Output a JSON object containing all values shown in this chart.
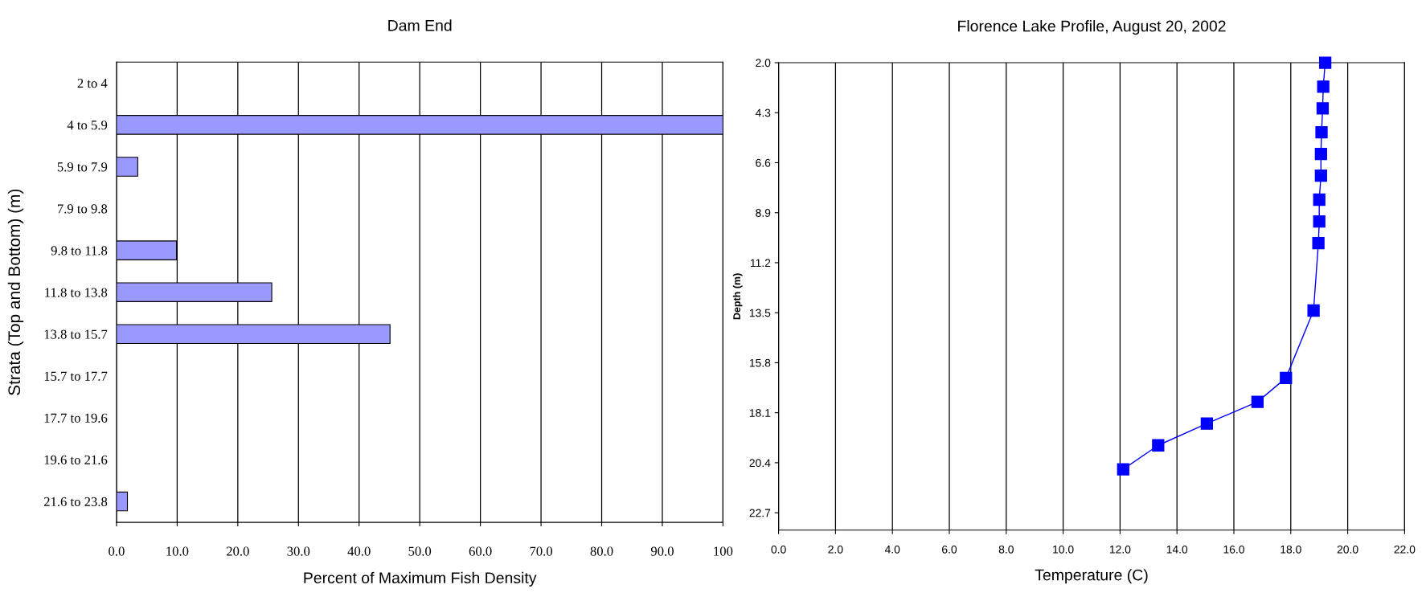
{
  "chart_data": [
    {
      "type": "bar",
      "orientation": "horizontal",
      "title": "Dam End",
      "xlabel": "Percent of Maximum Fish Density",
      "ylabel": "Strata (Top and Bottom) (m)",
      "categories": [
        "2 to 4",
        "4 to 5.9",
        "5.9 to 7.9",
        "7.9 to 9.8",
        "9.8 to 11.8",
        "11.8 to 13.8",
        "13.8 to 15.7",
        "15.7 to 17.7",
        "17.7 to 19.6",
        "19.6 to 21.6",
        "21.6 to 23.8"
      ],
      "values": [
        null,
        100,
        3.5,
        null,
        9.9,
        25.6,
        45.1,
        null,
        null,
        null,
        1.8
      ],
      "color": "#9999ff",
      "xlim": [
        0,
        100
      ],
      "xticks": [
        {
          "value": 0,
          "label": "0.0"
        },
        {
          "value": 10,
          "label": "10.0"
        },
        {
          "value": 20,
          "label": "20.0"
        },
        {
          "value": 30,
          "label": "30.0"
        },
        {
          "value": 40,
          "label": "40.0"
        },
        {
          "value": 50,
          "label": "50.0"
        },
        {
          "value": 60,
          "label": "60.0"
        },
        {
          "value": 70,
          "label": "70.0"
        },
        {
          "value": 80,
          "label": "80.0"
        },
        {
          "value": 90,
          "label": "90.0"
        },
        100
      ],
      "grid": "x",
      "legend": false
    },
    {
      "type": "line",
      "title": "Florence Lake Profile, August 20, 2002",
      "xlabel": "Temperature (C)",
      "ylabel": "Depth (m)",
      "x": [
        19.21,
        19.14,
        19.12,
        19.08,
        19.06,
        19.06,
        19.0,
        19.0,
        18.97,
        18.8,
        17.83,
        16.83,
        15.05,
        13.34,
        12.11
      ],
      "values": [
        2.0,
        3.1,
        4.1,
        5.2,
        6.2,
        7.2,
        8.3,
        9.3,
        10.3,
        13.4,
        16.5,
        17.6,
        18.6,
        19.6,
        20.7
      ],
      "color": "#0000ff",
      "marker": "square",
      "line_style": "solid",
      "xlim": [
        0,
        22
      ],
      "ylim": [
        23.5,
        2.0
      ],
      "xticks": [
        {
          "value": 0,
          "label": "0.0"
        },
        {
          "value": 2,
          "label": "2.0"
        },
        {
          "value": 4,
          "label": "4.0"
        },
        {
          "value": 6,
          "label": "6.0"
        },
        {
          "value": 8,
          "label": "8.0"
        },
        {
          "value": 10,
          "label": "10.0"
        },
        {
          "value": 12,
          "label": "12.0"
        },
        {
          "value": 14,
          "label": "14.0"
        },
        {
          "value": 16,
          "label": "16.0"
        },
        {
          "value": 18,
          "label": "18.0"
        },
        {
          "value": 20,
          "label": "20.0"
        },
        {
          "value": 22,
          "label": "22.0"
        }
      ],
      "yticks": [
        {
          "value": 2,
          "label": "2.0"
        },
        4.3,
        6.6,
        8.9,
        11.2,
        13.5,
        15.8,
        18.1,
        20.4,
        22.7
      ],
      "grid": "x",
      "legend": false
    }
  ]
}
